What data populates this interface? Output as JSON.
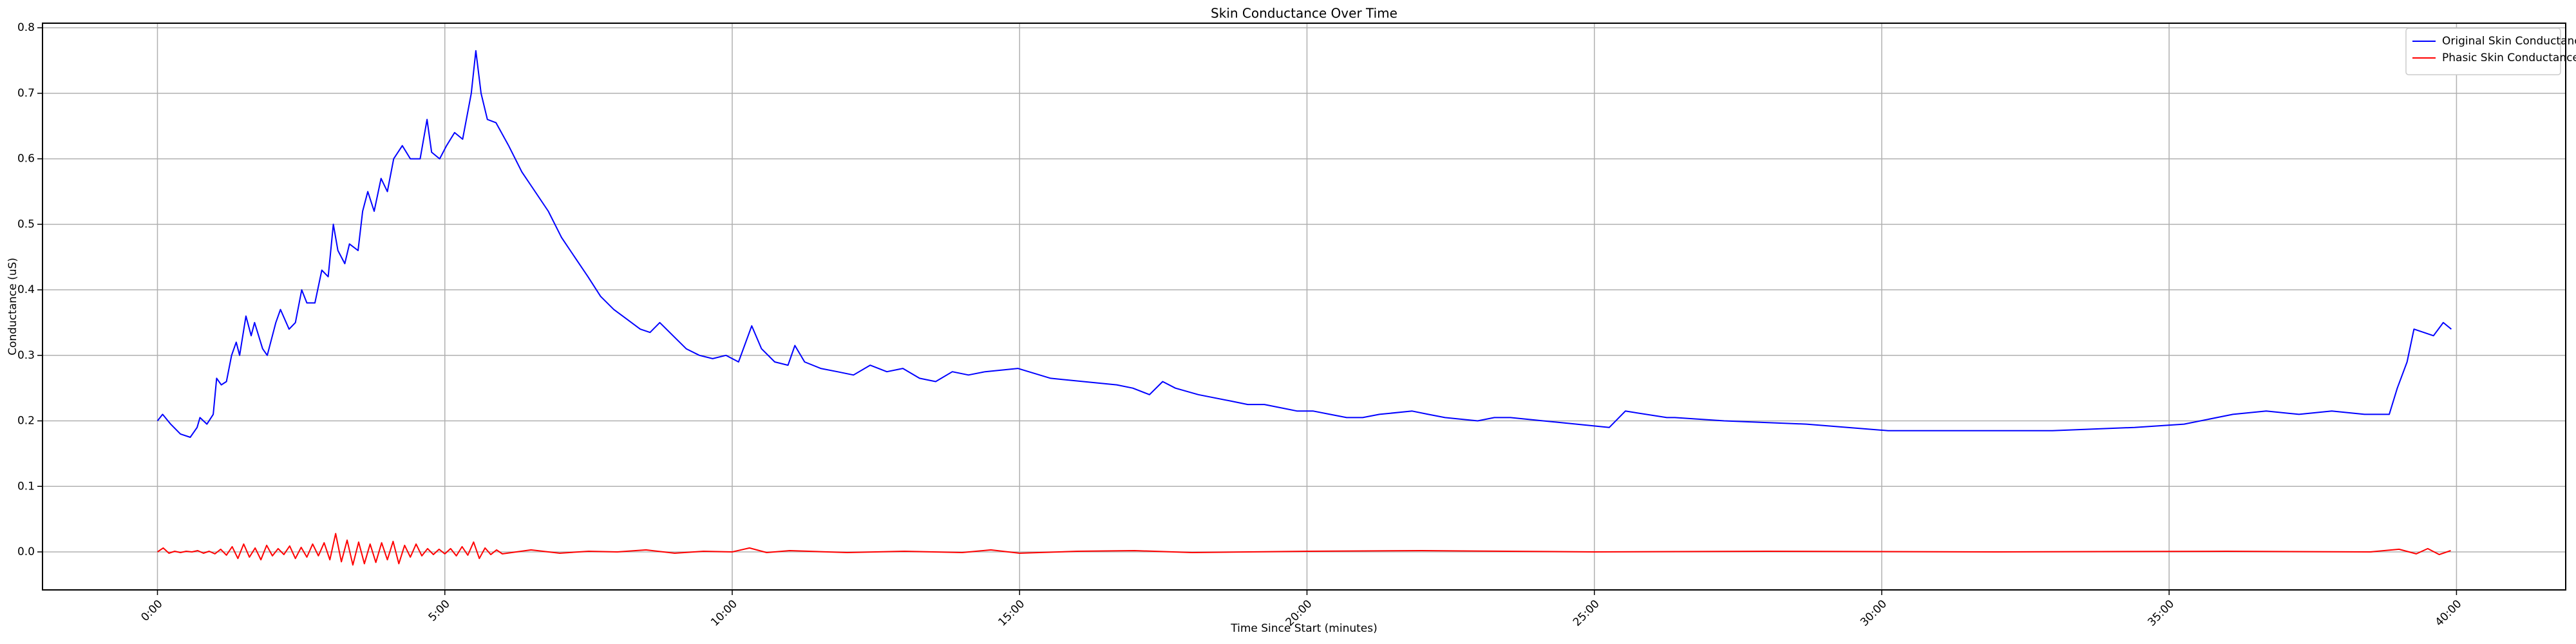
{
  "chart_data": {
    "type": "line",
    "title": "Skin Conductance  Over Time",
    "x_label": "Time Since Start (minutes)",
    "y_label": "Conductance (uS)",
    "xlim": [
      -2.0,
      41.9
    ],
    "ylim": [
      -0.058,
      0.807
    ],
    "xticks": [
      {
        "value": 0,
        "label": "0:00"
      },
      {
        "value": 5,
        "label": "5:00"
      },
      {
        "value": 10,
        "label": "10:00"
      },
      {
        "value": 15,
        "label": "15:00"
      },
      {
        "value": 20,
        "label": "20:00"
      },
      {
        "value": 25,
        "label": "25:00"
      },
      {
        "value": 30,
        "label": "30:00"
      },
      {
        "value": 35,
        "label": "35:00"
      },
      {
        "value": 40,
        "label": "40:00"
      }
    ],
    "yticks": [
      {
        "value": 0,
        "label": "0.0"
      },
      0.1,
      0.2,
      0.3,
      0.4,
      0.5,
      0.6,
      0.7,
      0.8
    ],
    "grid": true,
    "legend": "upper right",
    "series": [
      {
        "name": "Original Skin Conductance",
        "color": "#0000ff",
        "x": [
          0,
          0.09,
          0.23,
          0.4,
          0.57,
          0.69,
          0.74,
          0.86,
          0.97,
          1.03,
          1.11,
          1.2,
          1.29,
          1.37,
          1.43,
          1.54,
          1.63,
          1.69,
          1.83,
          1.91,
          2.06,
          2.14,
          2.29,
          2.4,
          2.51,
          2.6,
          2.74,
          2.86,
          2.97,
          3.06,
          3.14,
          3.26,
          3.34,
          3.49,
          3.57,
          3.66,
          3.77,
          3.89,
          4.0,
          4.11,
          4.26,
          4.4,
          4.57,
          4.69,
          4.77,
          4.91,
          5.03,
          5.17,
          5.31,
          5.46,
          5.54,
          5.63,
          5.74,
          5.89,
          6.11,
          6.34,
          6.57,
          6.8,
          7.03,
          7.26,
          7.49,
          7.71,
          7.94,
          8.17,
          8.4,
          8.57,
          8.74,
          8.97,
          9.2,
          9.43,
          9.66,
          9.89,
          10.11,
          10.34,
          10.51,
          10.74,
          10.97,
          11.09,
          11.26,
          11.54,
          11.83,
          12.11,
          12.4,
          12.69,
          12.97,
          13.26,
          13.54,
          13.83,
          14.11,
          14.4,
          14.97,
          15.54,
          16.11,
          16.69,
          16.97,
          17.26,
          17.49,
          17.71,
          18.11,
          18.69,
          18.97,
          19.26,
          19.83,
          20.11,
          20.4,
          20.69,
          20.97,
          21.26,
          21.83,
          22.11,
          22.4,
          22.97,
          23.26,
          23.54,
          24.11,
          24.69,
          25.26,
          25.54,
          26.26,
          26.4,
          27.26,
          28.69,
          30.11,
          31.54,
          32.97,
          34.4,
          35.26,
          36.11,
          36.69,
          37.26,
          37.83,
          38.4,
          38.83,
          38.97,
          39.14,
          39.26,
          39.43,
          39.6,
          39.77,
          39.91
        ],
        "values": [
          0.2,
          0.21,
          0.195,
          0.18,
          0.175,
          0.19,
          0.205,
          0.195,
          0.21,
          0.265,
          0.255,
          0.26,
          0.3,
          0.32,
          0.3,
          0.36,
          0.33,
          0.35,
          0.31,
          0.3,
          0.35,
          0.37,
          0.34,
          0.35,
          0.4,
          0.38,
          0.38,
          0.43,
          0.42,
          0.5,
          0.46,
          0.44,
          0.47,
          0.46,
          0.52,
          0.55,
          0.52,
          0.57,
          0.55,
          0.6,
          0.62,
          0.6,
          0.6,
          0.66,
          0.61,
          0.6,
          0.62,
          0.64,
          0.63,
          0.7,
          0.765,
          0.7,
          0.66,
          0.655,
          0.62,
          0.58,
          0.55,
          0.52,
          0.48,
          0.45,
          0.42,
          0.39,
          0.37,
          0.355,
          0.34,
          0.335,
          0.35,
          0.33,
          0.31,
          0.3,
          0.295,
          0.3,
          0.29,
          0.345,
          0.31,
          0.29,
          0.285,
          0.315,
          0.29,
          0.28,
          0.275,
          0.27,
          0.285,
          0.275,
          0.28,
          0.265,
          0.26,
          0.275,
          0.27,
          0.275,
          0.28,
          0.265,
          0.26,
          0.255,
          0.25,
          0.24,
          0.26,
          0.25,
          0.24,
          0.23,
          0.225,
          0.225,
          0.215,
          0.215,
          0.21,
          0.205,
          0.205,
          0.21,
          0.215,
          0.21,
          0.205,
          0.2,
          0.205,
          0.205,
          0.2,
          0.195,
          0.19,
          0.215,
          0.205,
          0.205,
          0.2,
          0.195,
          0.185,
          0.185,
          0.185,
          0.19,
          0.195,
          0.21,
          0.215,
          0.21,
          0.215,
          0.21,
          0.21,
          0.25,
          0.29,
          0.34,
          0.335,
          0.33,
          0.35,
          0.34
        ]
      },
      {
        "name": "Phasic Skin Conductance",
        "color": "#ff0000",
        "x": [
          0,
          0.1,
          0.2,
          0.3,
          0.4,
          0.5,
          0.6,
          0.7,
          0.8,
          0.9,
          1.0,
          1.1,
          1.2,
          1.3,
          1.4,
          1.5,
          1.6,
          1.7,
          1.8,
          1.9,
          2.0,
          2.1,
          2.2,
          2.3,
          2.4,
          2.5,
          2.6,
          2.7,
          2.8,
          2.9,
          3.0,
          3.1,
          3.2,
          3.3,
          3.4,
          3.5,
          3.6,
          3.7,
          3.8,
          3.9,
          4.0,
          4.1,
          4.2,
          4.3,
          4.4,
          4.5,
          4.6,
          4.7,
          4.8,
          4.9,
          5.0,
          5.1,
          5.2,
          5.3,
          5.4,
          5.5,
          5.6,
          5.7,
          5.8,
          5.9,
          6.0,
          6.5,
          7,
          7.5,
          8,
          8.5,
          9,
          9.5,
          10,
          10.3,
          10.6,
          11,
          12,
          13,
          14,
          14.5,
          15,
          16,
          17,
          18,
          20,
          22,
          25,
          28,
          32,
          36,
          38.5,
          39,
          39.3,
          39.5,
          39.7,
          39.9
        ],
        "values": [
          0,
          0.006,
          -0.002,
          0.001,
          -0.001,
          0.001,
          0,
          0.002,
          -0.002,
          0.001,
          -0.003,
          0.004,
          -0.005,
          0.008,
          -0.01,
          0.012,
          -0.008,
          0.006,
          -0.012,
          0.01,
          -0.006,
          0.005,
          -0.004,
          0.009,
          -0.01,
          0.007,
          -0.008,
          0.012,
          -0.006,
          0.014,
          -0.012,
          0.028,
          -0.015,
          0.018,
          -0.02,
          0.015,
          -0.018,
          0.012,
          -0.016,
          0.014,
          -0.012,
          0.016,
          -0.018,
          0.01,
          -0.008,
          0.012,
          -0.006,
          0.005,
          -0.004,
          0.004,
          -0.003,
          0.005,
          -0.006,
          0.008,
          -0.005,
          0.015,
          -0.01,
          0.006,
          -0.004,
          0.003,
          -0.003,
          0.003,
          -0.002,
          0.001,
          0,
          0.003,
          -0.002,
          0.001,
          0,
          0.006,
          -0.001,
          0.002,
          -0.001,
          0.001,
          -0.001,
          0.003,
          -0.002,
          0.001,
          0.002,
          -0.001,
          0.001,
          0.002,
          0,
          0.001,
          0,
          0.001,
          0,
          0.004,
          -0.003,
          0.005,
          -0.004,
          0.002
        ]
      }
    ]
  }
}
